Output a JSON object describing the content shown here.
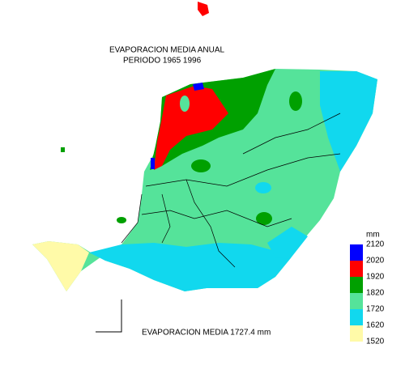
{
  "title": [
    "EVAPORACION MEDIA ANUAL",
    "PERIODO 1965   1996"
  ],
  "legend": {
    "unit": "mm",
    "labels": [
      "2120",
      "2020",
      "1920",
      "1820",
      "1720",
      "1620",
      "1520"
    ],
    "colors": [
      "#0000ff",
      "#ff0000",
      "#00a000",
      "#55e39a",
      "#11d8ee",
      "#fffaa8"
    ]
  },
  "footer": "EVAPORACION MEDIA 1727.4  mm"
}
